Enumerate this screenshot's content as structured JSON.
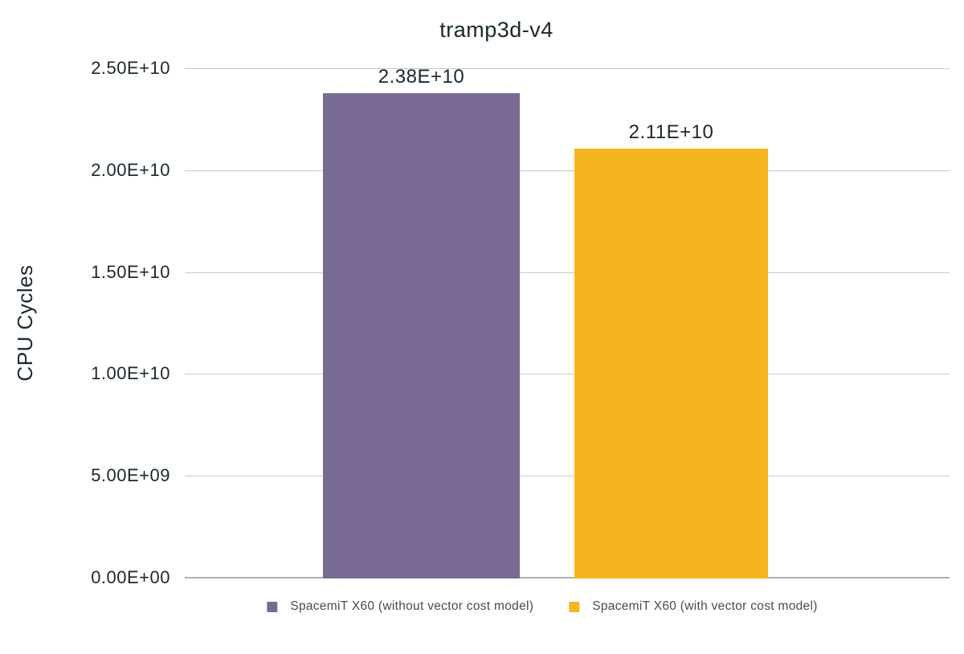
{
  "chart_data": {
    "type": "bar",
    "title": "tramp3d-v4",
    "xlabel": "",
    "ylabel": "CPU Cycles",
    "categories": [
      "tramp3d-v4"
    ],
    "series": [
      {
        "name": "SpacemiT X60 (without vector cost model)",
        "values": [
          23800000000
        ],
        "data_label": "2.38E+10",
        "color": "#796A93"
      },
      {
        "name": "SpacemiT X60 (with vector cost model)",
        "values": [
          21100000000
        ],
        "data_label": "2.11E+10",
        "color": "#F5B51E"
      }
    ],
    "ylim": [
      0,
      25000000000
    ],
    "yticks": [
      "0.00E+00",
      "5.00E+09",
      "1.00E+10",
      "1.50E+10",
      "2.00E+10",
      "2.50E+10"
    ],
    "grid": true,
    "legend_position": "bottom"
  },
  "colors": {
    "text_dark": "#1A282E",
    "legend_text": "#4B4B4B",
    "gridline": "#C9C9C9",
    "baseline": "#B0B0B0",
    "background": "#FFFFFF"
  }
}
